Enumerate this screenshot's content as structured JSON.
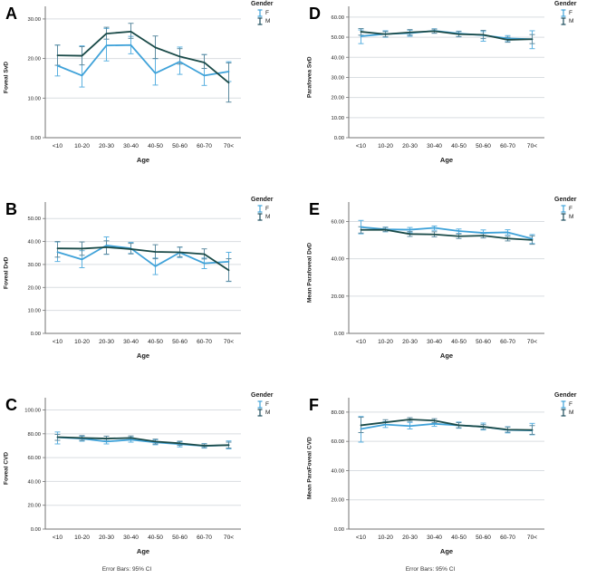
{
  "figure": {
    "xlabel": "Age",
    "footnote": "Error Bars: 95% CI",
    "legend": {
      "title": "Gender",
      "items": [
        {
          "label": "F",
          "color": "#3fa2d9"
        },
        {
          "label": "M",
          "color": "#1d4e5e"
        }
      ]
    },
    "colors": {
      "female_line": "#3fa2d9",
      "female_bar": "#5cb1e0",
      "male_line": "#1a4a48",
      "male_bar": "#5d8ba0",
      "gridline": "#d9dde1",
      "axis": "#737373"
    }
  },
  "chart_data": [
    {
      "type": "line",
      "panel": "A",
      "ylabel": "Foveal SvD",
      "xlabel": "Age",
      "categories": [
        "<10",
        "10-20",
        "20-30",
        "30-40",
        "40-50",
        "50-60",
        "60-70",
        "70<"
      ],
      "yticks": [
        0,
        10,
        20,
        30
      ],
      "ytick_labels": [
        "0.00",
        "10.00",
        "20.00",
        "30.00"
      ],
      "ylim": [
        0,
        32.5
      ],
      "legend_position": "right",
      "grid": true,
      "series": [
        {
          "name": "F",
          "color": "#3fa2d9",
          "bar_color": "#5cb1e0",
          "values": [
            18.2,
            15.7,
            23.3,
            23.4,
            16.3,
            19.2,
            15.7,
            16.7
          ],
          "ci_low": [
            15.6,
            12.8,
            19.4,
            21.2,
            13.3,
            16.0,
            13.2,
            14.2
          ],
          "ci_high": [
            23.4,
            23.2,
            27.6,
            25.6,
            20.0,
            22.9,
            21.0,
            19.2
          ]
        },
        {
          "name": "M",
          "color": "#1a4a48",
          "bar_color": "#5d8ba0",
          "values": [
            20.8,
            20.7,
            26.3,
            26.8,
            22.8,
            20.5,
            19.0,
            13.9
          ],
          "ci_low": [
            18.3,
            18.4,
            24.9,
            25.1,
            20.0,
            18.6,
            17.5,
            9.0
          ],
          "ci_high": [
            23.4,
            23.0,
            27.9,
            28.9,
            25.7,
            22.5,
            21.0,
            18.9
          ]
        }
      ]
    },
    {
      "type": "line",
      "panel": "B",
      "ylabel": "Foveal DvD",
      "xlabel": "Age",
      "categories": [
        "<10",
        "10-20",
        "20-30",
        "30-40",
        "40-50",
        "50-60",
        "60-70",
        "70<"
      ],
      "yticks": [
        0,
        10,
        20,
        30,
        40,
        50
      ],
      "ytick_labels": [
        "0.00",
        "10.00",
        "20.00",
        "30.00",
        "40.00",
        "50.00"
      ],
      "ylim": [
        0,
        56
      ],
      "legend_position": "right",
      "grid": true,
      "series": [
        {
          "name": "F",
          "color": "#3fa2d9",
          "bar_color": "#5cb1e0",
          "values": [
            35.4,
            32.2,
            38.3,
            37.0,
            29.2,
            35.2,
            30.5,
            31.2
          ],
          "ci_low": [
            31.3,
            28.6,
            34.4,
            34.8,
            25.6,
            33.0,
            28.2,
            22.6
          ],
          "ci_high": [
            39.8,
            36.0,
            42.0,
            39.6,
            32.8,
            37.5,
            32.8,
            35.3
          ]
        },
        {
          "name": "M",
          "color": "#1a4a48",
          "bar_color": "#5d8ba0",
          "values": [
            37.0,
            36.9,
            37.5,
            36.7,
            35.5,
            35.3,
            34.5,
            27.5
          ],
          "ci_low": [
            33.2,
            34.0,
            34.5,
            34.6,
            32.5,
            33.4,
            32.4,
            22.7
          ],
          "ci_high": [
            40.0,
            39.8,
            40.3,
            39.2,
            38.6,
            37.6,
            36.8,
            32.5
          ]
        }
      ]
    },
    {
      "type": "line",
      "panel": "C",
      "ylabel": "Foveal CVD",
      "xlabel": "Age",
      "footnote": "Error Bars: 95% CI",
      "categories": [
        "<10",
        "10-20",
        "20-30",
        "30-40",
        "40-50",
        "50-60",
        "60-70",
        "70<"
      ],
      "yticks": [
        0,
        20,
        40,
        60,
        80,
        100
      ],
      "ytick_labels": [
        "0.00",
        "20.00",
        "40.00",
        "60.00",
        "80.00",
        "100.00"
      ],
      "ylim": [
        0,
        108
      ],
      "legend_position": "right",
      "grid": true,
      "series": [
        {
          "name": "F",
          "color": "#3fa2d9",
          "bar_color": "#5cb1e0",
          "values": [
            77.0,
            76.0,
            73.5,
            75.0,
            72.8,
            71.3,
            69.8,
            70.5
          ],
          "ci_low": [
            71.5,
            73.8,
            71.5,
            73.0,
            70.8,
            69.0,
            68.0,
            67.3
          ],
          "ci_high": [
            81.5,
            78.0,
            75.5,
            77.0,
            75.0,
            73.3,
            71.8,
            74.0
          ]
        },
        {
          "name": "M",
          "color": "#1a4a48",
          "bar_color": "#5d8ba0",
          "values": [
            77.2,
            76.5,
            76.0,
            76.5,
            73.5,
            72.0,
            70.0,
            70.5
          ],
          "ci_low": [
            74.5,
            74.5,
            74.0,
            74.8,
            71.5,
            70.3,
            68.5,
            68.0
          ],
          "ci_high": [
            79.5,
            78.5,
            78.0,
            78.2,
            75.5,
            73.8,
            71.5,
            73.0
          ]
        }
      ]
    },
    {
      "type": "line",
      "panel": "D",
      "ylabel": "Parafovea SvD",
      "xlabel": "Age",
      "categories": [
        "<10",
        "10-20",
        "20-30",
        "30-40",
        "40-50",
        "50-60",
        "60-70",
        "70<"
      ],
      "yticks": [
        0,
        10,
        20,
        30,
        40,
        50,
        60
      ],
      "ytick_labels": [
        "0.00",
        "10.00",
        "20.00",
        "30.00",
        "40.00",
        "50.00",
        "60.00"
      ],
      "ylim": [
        0,
        64
      ],
      "legend_position": "right",
      "grid": true,
      "series": [
        {
          "name": "F",
          "color": "#3fa2d9",
          "bar_color": "#5cb1e0",
          "values": [
            50.5,
            51.6,
            52.0,
            53.2,
            51.8,
            51.0,
            49.4,
            49.0
          ],
          "ci_low": [
            46.8,
            50.0,
            50.5,
            52.0,
            50.3,
            48.0,
            47.8,
            44.3
          ],
          "ci_high": [
            53.6,
            53.2,
            53.5,
            54.2,
            53.0,
            52.8,
            50.8,
            53.2
          ]
        },
        {
          "name": "M",
          "color": "#1a4a48",
          "bar_color": "#5d8ba0",
          "values": [
            52.7,
            51.5,
            52.4,
            53.0,
            51.5,
            51.2,
            48.7,
            49.0
          ],
          "ci_low": [
            51.0,
            50.2,
            51.0,
            52.0,
            50.2,
            49.3,
            47.5,
            46.8
          ],
          "ci_high": [
            54.3,
            52.8,
            53.8,
            54.0,
            52.8,
            53.4,
            50.0,
            51.3
          ]
        }
      ]
    },
    {
      "type": "line",
      "panel": "E",
      "ylabel": "Mean Parafoveal DvD",
      "xlabel": "Age",
      "categories": [
        "<10",
        "10-20",
        "20-30",
        "30-40",
        "40-50",
        "50-60",
        "60-70",
        "70<"
      ],
      "yticks": [
        0,
        20,
        40,
        60
      ],
      "ytick_labels": [
        "0.00",
        "20.00",
        "40.00",
        "60.00"
      ],
      "ylim": [
        0,
        69
      ],
      "legend_position": "right",
      "grid": true,
      "series": [
        {
          "name": "F",
          "color": "#3fa2d9",
          "bar_color": "#5cb1e0",
          "values": [
            57.0,
            55.8,
            55.6,
            56.6,
            54.9,
            53.9,
            54.2,
            50.8
          ],
          "ci_low": [
            53.4,
            54.5,
            54.0,
            55.3,
            53.6,
            52.3,
            52.8,
            48.2
          ],
          "ci_high": [
            60.6,
            57.0,
            56.8,
            57.6,
            56.0,
            55.5,
            55.6,
            53.0
          ]
        },
        {
          "name": "M",
          "color": "#1a4a48",
          "bar_color": "#5d8ba0",
          "values": [
            55.5,
            55.6,
            53.3,
            53.1,
            52.1,
            52.4,
            50.9,
            50.1
          ],
          "ci_low": [
            53.8,
            54.6,
            52.0,
            51.8,
            50.9,
            51.2,
            49.6,
            47.8
          ],
          "ci_high": [
            57.2,
            56.8,
            54.6,
            54.5,
            53.3,
            53.6,
            52.0,
            52.3
          ]
        }
      ]
    },
    {
      "type": "line",
      "panel": "F",
      "ylabel": "Mean ParaFoveal CVD",
      "xlabel": "Age",
      "footnote": "Error Bars: 95% CI",
      "categories": [
        "<10",
        "10-20",
        "20-30",
        "30-40",
        "40-50",
        "50-60",
        "60-70",
        "70<"
      ],
      "yticks": [
        0,
        20,
        40,
        60,
        80
      ],
      "ytick_labels": [
        "0.00",
        "20.00",
        "40.00",
        "60.00",
        "80.00"
      ],
      "ylim": [
        0,
        88
      ],
      "legend_position": "right",
      "grid": true,
      "series": [
        {
          "name": "F",
          "color": "#3fa2d9",
          "bar_color": "#5cb1e0",
          "values": [
            68.5,
            71.5,
            70.5,
            72.0,
            71.0,
            70.0,
            67.8,
            67.5
          ],
          "ci_low": [
            59.5,
            69.5,
            68.5,
            70.3,
            69.0,
            67.8,
            65.8,
            64.5
          ],
          "ci_high": [
            77.0,
            73.5,
            73.0,
            74.0,
            73.2,
            72.5,
            70.0,
            72.3
          ]
        },
        {
          "name": "M",
          "color": "#1a4a48",
          "bar_color": "#5d8ba0",
          "values": [
            71.0,
            73.0,
            75.0,
            74.2,
            71.0,
            70.0,
            68.0,
            67.8
          ],
          "ci_low": [
            66.0,
            71.3,
            73.8,
            72.8,
            69.3,
            68.3,
            66.3,
            64.8
          ],
          "ci_high": [
            76.5,
            74.8,
            76.2,
            75.5,
            72.8,
            71.5,
            69.8,
            70.8
          ]
        }
      ]
    }
  ]
}
